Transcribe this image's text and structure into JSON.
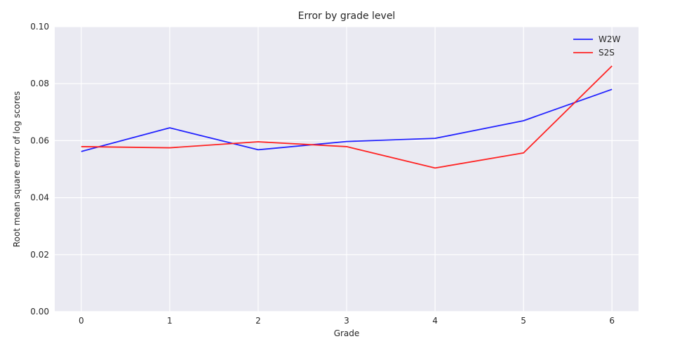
{
  "chart_data": {
    "type": "line",
    "title": "Error by grade level",
    "xlabel": "Grade",
    "ylabel": "Root mean square error of log scores",
    "x": [
      0,
      1,
      2,
      3,
      4,
      5,
      6
    ],
    "xlim": [
      -0.3,
      6.3
    ],
    "ylim": [
      0.0,
      0.1
    ],
    "x_ticks": [
      "0",
      "1",
      "2",
      "3",
      "4",
      "5",
      "6"
    ],
    "y_ticks": [
      "0.00",
      "0.02",
      "0.04",
      "0.06",
      "0.08",
      "0.10"
    ],
    "y_tick_values": [
      0.0,
      0.02,
      0.04,
      0.06,
      0.08,
      0.1
    ],
    "grid": true,
    "legend_position": "top-right",
    "series": [
      {
        "name": "W2W",
        "color": "#2222ff",
        "values": [
          0.0562,
          0.0645,
          0.0568,
          0.0597,
          0.0608,
          0.067,
          0.078
        ]
      },
      {
        "name": "S2S",
        "color": "#ff2222",
        "values": [
          0.0579,
          0.0575,
          0.0596,
          0.0579,
          0.0504,
          0.0557,
          0.0862
        ]
      }
    ]
  }
}
